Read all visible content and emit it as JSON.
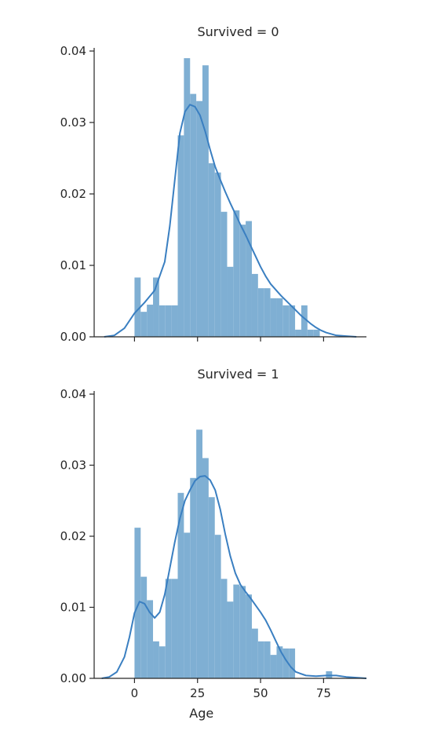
{
  "chart_data": [
    {
      "type": "histogram_kde",
      "title": "Survived = 0",
      "xlabel": "",
      "ylabel": "",
      "xlim": [
        -16,
        92
      ],
      "ylim": [
        0,
        0.04
      ],
      "yticks": [
        0.0,
        0.01,
        0.02,
        0.03,
        0.04
      ],
      "ytick_labels": [
        "0.00",
        "0.01",
        "0.02",
        "0.03",
        "0.04"
      ],
      "xticks": [
        0,
        25,
        50,
        75
      ],
      "xtick_labels": [],
      "bar_color": "#7fafd3",
      "line_color": "#3a7fc1",
      "bins": [
        {
          "x0": 0.0,
          "x1": 2.45,
          "height": 0.0083
        },
        {
          "x0": 2.45,
          "x1": 4.9,
          "height": 0.0035
        },
        {
          "x0": 4.9,
          "x1": 7.35,
          "height": 0.0045
        },
        {
          "x0": 7.35,
          "x1": 9.8,
          "height": 0.0083
        },
        {
          "x0": 9.8,
          "x1": 12.25,
          "height": 0.0044
        },
        {
          "x0": 12.25,
          "x1": 14.7,
          "height": 0.0044
        },
        {
          "x0": 14.7,
          "x1": 17.15,
          "height": 0.0044
        },
        {
          "x0": 17.15,
          "x1": 19.6,
          "height": 0.0282
        },
        {
          "x0": 19.6,
          "x1": 22.05,
          "height": 0.039
        },
        {
          "x0": 22.05,
          "x1": 24.5,
          "height": 0.034
        },
        {
          "x0": 24.5,
          "x1": 26.95,
          "height": 0.033
        },
        {
          "x0": 26.95,
          "x1": 29.4,
          "height": 0.038
        },
        {
          "x0": 29.4,
          "x1": 31.85,
          "height": 0.0243
        },
        {
          "x0": 31.85,
          "x1": 34.3,
          "height": 0.023
        },
        {
          "x0": 34.3,
          "x1": 36.75,
          "height": 0.0175
        },
        {
          "x0": 36.75,
          "x1": 39.2,
          "height": 0.0098
        },
        {
          "x0": 39.2,
          "x1": 41.65,
          "height": 0.0177
        },
        {
          "x0": 41.65,
          "x1": 44.1,
          "height": 0.0157
        },
        {
          "x0": 44.1,
          "x1": 46.55,
          "height": 0.0162
        },
        {
          "x0": 46.55,
          "x1": 49.0,
          "height": 0.0088
        },
        {
          "x0": 49.0,
          "x1": 51.45,
          "height": 0.0068
        },
        {
          "x0": 51.45,
          "x1": 53.9,
          "height": 0.0068
        },
        {
          "x0": 53.9,
          "x1": 56.35,
          "height": 0.0054
        },
        {
          "x0": 56.35,
          "x1": 58.8,
          "height": 0.0054
        },
        {
          "x0": 58.8,
          "x1": 61.25,
          "height": 0.0044
        },
        {
          "x0": 61.25,
          "x1": 63.7,
          "height": 0.0044
        },
        {
          "x0": 63.7,
          "x1": 66.15,
          "height": 0.001
        },
        {
          "x0": 66.15,
          "x1": 68.6,
          "height": 0.0044
        },
        {
          "x0": 68.6,
          "x1": 71.05,
          "height": 0.001
        },
        {
          "x0": 71.05,
          "x1": 73.5,
          "height": 0.001
        }
      ],
      "kde": {
        "x": [
          -12,
          -8,
          -4,
          0,
          4,
          8,
          12,
          14,
          16,
          18,
          20,
          22,
          24,
          26,
          28,
          30,
          32,
          34,
          36,
          38,
          40,
          42,
          44,
          46,
          48,
          50,
          52,
          54,
          56,
          58,
          60,
          62,
          64,
          66,
          68,
          70,
          72,
          74,
          76,
          80,
          84,
          88
        ],
        "y": [
          0.0,
          0.0002,
          0.0012,
          0.0033,
          0.0048,
          0.0065,
          0.0105,
          0.0155,
          0.022,
          0.0285,
          0.0315,
          0.0325,
          0.0322,
          0.031,
          0.0288,
          0.0262,
          0.0238,
          0.022,
          0.0203,
          0.0187,
          0.0172,
          0.0157,
          0.0143,
          0.0128,
          0.0113,
          0.0098,
          0.0085,
          0.0074,
          0.0066,
          0.0058,
          0.0051,
          0.0044,
          0.0037,
          0.003,
          0.0024,
          0.0018,
          0.0013,
          0.0009,
          0.0006,
          0.0002,
          0.0001,
          0.0
        ]
      }
    },
    {
      "type": "histogram_kde",
      "title": "Survived = 1",
      "xlabel": "Age",
      "ylabel": "",
      "xlim": [
        -16,
        92
      ],
      "ylim": [
        0,
        0.04
      ],
      "yticks": [
        0.0,
        0.01,
        0.02,
        0.03,
        0.04
      ],
      "ytick_labels": [
        "0.00",
        "0.01",
        "0.02",
        "0.03",
        "0.04"
      ],
      "xticks": [
        0,
        25,
        50,
        75
      ],
      "xtick_labels": [
        "0",
        "25",
        "50",
        "75"
      ],
      "bar_color": "#7fafd3",
      "line_color": "#3a7fc1",
      "bins": [
        {
          "x0": 0.0,
          "x1": 2.45,
          "height": 0.0212
        },
        {
          "x0": 2.45,
          "x1": 4.9,
          "height": 0.0143
        },
        {
          "x0": 4.9,
          "x1": 7.35,
          "height": 0.011
        },
        {
          "x0": 7.35,
          "x1": 9.8,
          "height": 0.0052
        },
        {
          "x0": 9.8,
          "x1": 12.25,
          "height": 0.0045
        },
        {
          "x0": 12.25,
          "x1": 14.7,
          "height": 0.014
        },
        {
          "x0": 14.7,
          "x1": 17.15,
          "height": 0.014
        },
        {
          "x0": 17.15,
          "x1": 19.6,
          "height": 0.0261
        },
        {
          "x0": 19.6,
          "x1": 22.05,
          "height": 0.0205
        },
        {
          "x0": 22.05,
          "x1": 24.5,
          "height": 0.0282
        },
        {
          "x0": 24.5,
          "x1": 26.95,
          "height": 0.035
        },
        {
          "x0": 26.95,
          "x1": 29.4,
          "height": 0.031
        },
        {
          "x0": 29.4,
          "x1": 31.85,
          "height": 0.0255
        },
        {
          "x0": 31.85,
          "x1": 34.3,
          "height": 0.0202
        },
        {
          "x0": 34.3,
          "x1": 36.75,
          "height": 0.014
        },
        {
          "x0": 36.75,
          "x1": 39.2,
          "height": 0.0108
        },
        {
          "x0": 39.2,
          "x1": 41.65,
          "height": 0.0132
        },
        {
          "x0": 41.65,
          "x1": 44.1,
          "height": 0.013
        },
        {
          "x0": 44.1,
          "x1": 46.55,
          "height": 0.0118
        },
        {
          "x0": 46.55,
          "x1": 49.0,
          "height": 0.007
        },
        {
          "x0": 49.0,
          "x1": 51.45,
          "height": 0.0052
        },
        {
          "x0": 51.45,
          "x1": 53.9,
          "height": 0.0052
        },
        {
          "x0": 53.9,
          "x1": 56.35,
          "height": 0.0033
        },
        {
          "x0": 56.35,
          "x1": 58.8,
          "height": 0.0045
        },
        {
          "x0": 58.8,
          "x1": 61.25,
          "height": 0.0042
        },
        {
          "x0": 61.25,
          "x1": 63.7,
          "height": 0.0042
        },
        {
          "x0": 63.7,
          "x1": 66.15,
          "height": 0.0
        },
        {
          "x0": 66.15,
          "x1": 68.6,
          "height": 0.0
        },
        {
          "x0": 68.6,
          "x1": 71.05,
          "height": 0.0
        },
        {
          "x0": 71.05,
          "x1": 73.5,
          "height": 0.0
        },
        {
          "x0": 73.5,
          "x1": 75.95,
          "height": 0.0
        },
        {
          "x0": 75.95,
          "x1": 78.4,
          "height": 0.001
        }
      ],
      "kde": {
        "x": [
          -13,
          -10,
          -7,
          -4,
          -2,
          0,
          2,
          4,
          6,
          8,
          10,
          12,
          14,
          16,
          18,
          20,
          22,
          24,
          26,
          28,
          30,
          32,
          34,
          36,
          38,
          40,
          42,
          44,
          46,
          48,
          50,
          52,
          54,
          56,
          58,
          60,
          62,
          64,
          68,
          72,
          76,
          80,
          84,
          88,
          92
        ],
        "y": [
          0.0,
          0.0002,
          0.0009,
          0.003,
          0.0058,
          0.0092,
          0.0108,
          0.0105,
          0.0093,
          0.0085,
          0.0093,
          0.0118,
          0.0155,
          0.0192,
          0.0225,
          0.025,
          0.0265,
          0.0278,
          0.0284,
          0.0285,
          0.0279,
          0.0265,
          0.0238,
          0.0203,
          0.0172,
          0.0148,
          0.0132,
          0.0122,
          0.0113,
          0.0103,
          0.0093,
          0.0082,
          0.0068,
          0.0053,
          0.0038,
          0.0026,
          0.0016,
          0.0009,
          0.0004,
          0.0003,
          0.0004,
          0.0004,
          0.0002,
          0.0001,
          0.0
        ]
      }
    }
  ]
}
